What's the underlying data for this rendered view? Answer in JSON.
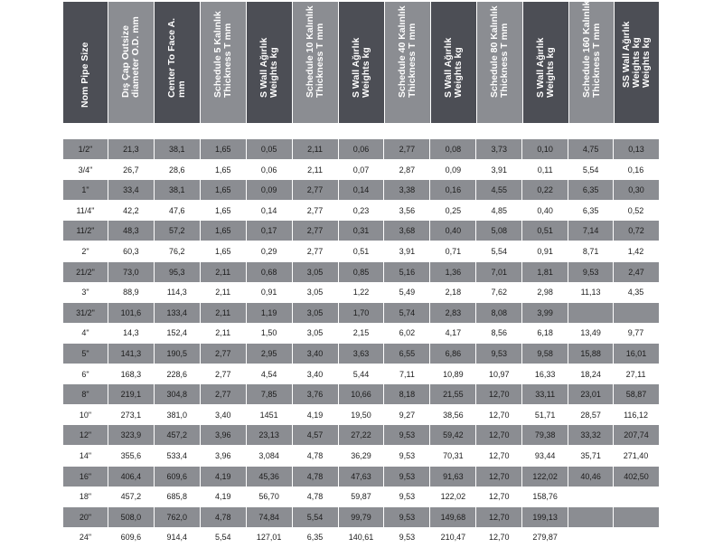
{
  "headers": [
    [
      "Nom Pipe Size"
    ],
    [
      "Dış Çap Outsize",
      "diameter O.D. mm"
    ],
    [
      "Center To Face A.",
      "mm"
    ],
    [
      "Schedule 5 Kalınlık",
      "Thickness T mm"
    ],
    [
      "S Wall Ağırlık",
      "Weights kg"
    ],
    [
      "Schedule 10 Kalınlık",
      "Thickness T mm"
    ],
    [
      "S Wall Ağırlık",
      "Weights kg"
    ],
    [
      "Schedule 40 Kalınlık",
      "Thickness T mm"
    ],
    [
      "S Wall Ağırlık",
      "Weights kg"
    ],
    [
      "Schedule 80 Kalınlık",
      "Thickness T mm"
    ],
    [
      "S Wall Ağırlık",
      "Weights kg"
    ],
    [
      "Schedule 160 Kalınlık",
      "Thickness T mm"
    ],
    [
      "SS Wall Ağırlık",
      "Weights kg",
      "Weights kg"
    ]
  ],
  "rows": [
    [
      "1/2\"",
      "21,3",
      "38,1",
      "1,65",
      "0,05",
      "2,11",
      "0,06",
      "2,77",
      "0,08",
      "3,73",
      "0,10",
      "4,75",
      "0,13"
    ],
    [
      "3/4\"",
      "26,7",
      "28,6",
      "1,65",
      "0,06",
      "2,11",
      "0,07",
      "2,87",
      "0,09",
      "3,91",
      "0,11",
      "5,54",
      "0,16"
    ],
    [
      "1\"",
      "33,4",
      "38,1",
      "1,65",
      "0,09",
      "2,77",
      "0,14",
      "3,38",
      "0,16",
      "4,55",
      "0,22",
      "6,35",
      "0,30"
    ],
    [
      "11/4\"",
      "42,2",
      "47,6",
      "1,65",
      "0,14",
      "2,77",
      "0,23",
      "3,56",
      "0,25",
      "4,85",
      "0,40",
      "6,35",
      "0,52"
    ],
    [
      "11/2\"",
      "48,3",
      "57,2",
      "1,65",
      "0,17",
      "2,77",
      "0,31",
      "3,68",
      "0,40",
      "5,08",
      "0,51",
      "7,14",
      "0,72"
    ],
    [
      "2\"",
      "60,3",
      "76,2",
      "1,65",
      "0,29",
      "2,77",
      "0,51",
      "3,91",
      "0,71",
      "5,54",
      "0,91",
      "8,71",
      "1,42"
    ],
    [
      "21/2\"",
      "73,0",
      "95,3",
      "2,11",
      "0,68",
      "3,05",
      "0,85",
      "5,16",
      "1,36",
      "7,01",
      "1,81",
      "9,53",
      "2,47"
    ],
    [
      "3\"",
      "88,9",
      "114,3",
      "2,11",
      "0,91",
      "3,05",
      "1,22",
      "5,49",
      "2,18",
      "7,62",
      "2,98",
      "11,13",
      "4,35"
    ],
    [
      "31/2\"",
      "101,6",
      "133,4",
      "2,11",
      "1,19",
      "3,05",
      "1,70",
      "5,74",
      "2,83",
      "8,08",
      "3,99",
      "",
      ""
    ],
    [
      "4\"",
      "14,3",
      "152,4",
      "2,11",
      "1,50",
      "3,05",
      "2,15",
      "6,02",
      "4,17",
      "8,56",
      "6,18",
      "13,49",
      "9,77"
    ],
    [
      "5\"",
      "141,3",
      "190,5",
      "2,77",
      "2,95",
      "3,40",
      "3,63",
      "6,55",
      "6,86",
      "9,53",
      "9,58",
      "15,88",
      "16,01"
    ],
    [
      "6\"",
      "168,3",
      "228,6",
      "2,77",
      "4,54",
      "3,40",
      "5,44",
      "7,11",
      "10,89",
      "10,97",
      "16,33",
      "18,24",
      "27,11"
    ],
    [
      "8\"",
      "219,1",
      "304,8",
      "2,77",
      "7,85",
      "3,76",
      "10,66",
      "8,18",
      "21,55",
      "12,70",
      "33,11",
      "23,01",
      "58,87"
    ],
    [
      "10\"",
      "273,1",
      "381,0",
      "3,40",
      "1451",
      "4,19",
      "19,50",
      "9,27",
      "38,56",
      "12,70",
      "51,71",
      "28,57",
      "116,12"
    ],
    [
      "12\"",
      "323,9",
      "457,2",
      "3,96",
      "23,13",
      "4,57",
      "27,22",
      "9,53",
      "59,42",
      "12,70",
      "79,38",
      "33,32",
      "207,74"
    ],
    [
      "14\"",
      "355,6",
      "533,4",
      "3,96",
      "3,084",
      "4,78",
      "36,29",
      "9,53",
      "70,31",
      "12,70",
      "93,44",
      "35,71",
      "271,40"
    ],
    [
      "16\"",
      "406,4",
      "609,6",
      "4,19",
      "45,36",
      "4,78",
      "47,63",
      "9,53",
      "91,63",
      "12,70",
      "122,02",
      "40,46",
      "402,50"
    ],
    [
      "18\"",
      "457,2",
      "685,8",
      "4,19",
      "56,70",
      "4,78",
      "59,87",
      "9,53",
      "122,02",
      "12,70",
      "158,76",
      "",
      ""
    ],
    [
      "20\"",
      "508,0",
      "762,0",
      "4,78",
      "74,84",
      "5,54",
      "99,79",
      "9,53",
      "149,68",
      "12,70",
      "199,13",
      "",
      ""
    ],
    [
      "24\"",
      "609,6",
      "914,4",
      "5,54",
      "127,01",
      "6,35",
      "140,61",
      "9,53",
      "210,47",
      "12,70",
      "279,87",
      "",
      ""
    ]
  ],
  "colors": {
    "header_dark": "#4c4e55",
    "header_light": "#8b8d92",
    "row_shaded": "#8b8d92",
    "row_plain": "#ffffff"
  }
}
